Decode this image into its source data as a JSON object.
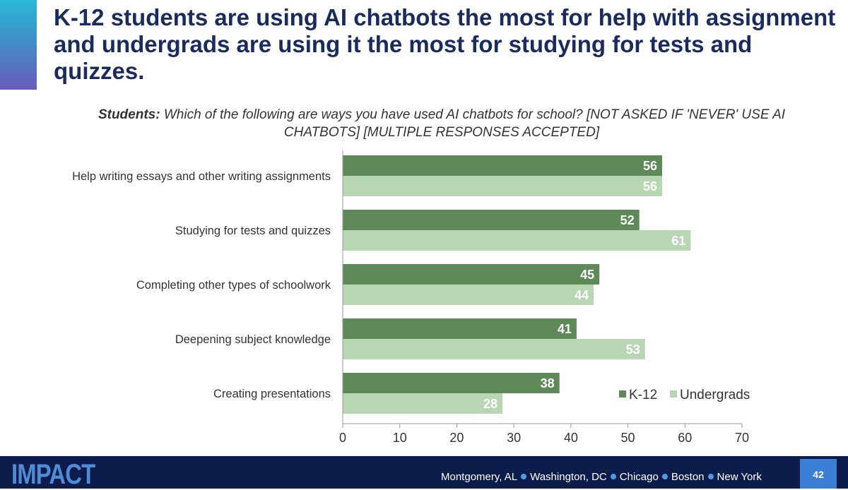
{
  "slide": {
    "title": "K-12 students are using AI chatbots the most for help with assignment and undergrads are using it the most for studying for tests and quizzes.",
    "subtitle_lead": "Students:",
    "subtitle_rest": " Which of the following are ways you have used AI chatbots for school? [NOT ASKED IF 'NEVER' USE AI CHATBOTS] [MULTIPLE RESPONSES ACCEPTED]",
    "page_number": "42"
  },
  "footer": {
    "logo_text": "IMPACT",
    "cities": [
      "Montgomery, AL",
      "Washington, DC",
      "Chicago",
      "Boston",
      "New York"
    ]
  },
  "colors": {
    "k12": "#5e8a5a",
    "undergrads": "#b8d6b3",
    "title": "#1a2b5e",
    "footer_bg": "#0c1d4c",
    "accent_blue": "#3a7fd4"
  },
  "chart_data": {
    "type": "bar",
    "orientation": "horizontal",
    "categories": [
      "Help writing essays and other writing assignments",
      "Studying for tests and quizzes",
      "Completing other types of schoolwork",
      "Deepening subject knowledge",
      "Creating presentations"
    ],
    "series": [
      {
        "name": "K-12",
        "values": [
          56,
          52,
          45,
          41,
          38
        ]
      },
      {
        "name": "Undergrads",
        "values": [
          56,
          61,
          44,
          53,
          28
        ]
      }
    ],
    "xlim": [
      0,
      70
    ],
    "xticks": [
      0,
      10,
      20,
      30,
      40,
      50,
      60,
      70
    ],
    "grid": false,
    "legend_position": "bottom-right",
    "data_labels": true
  }
}
